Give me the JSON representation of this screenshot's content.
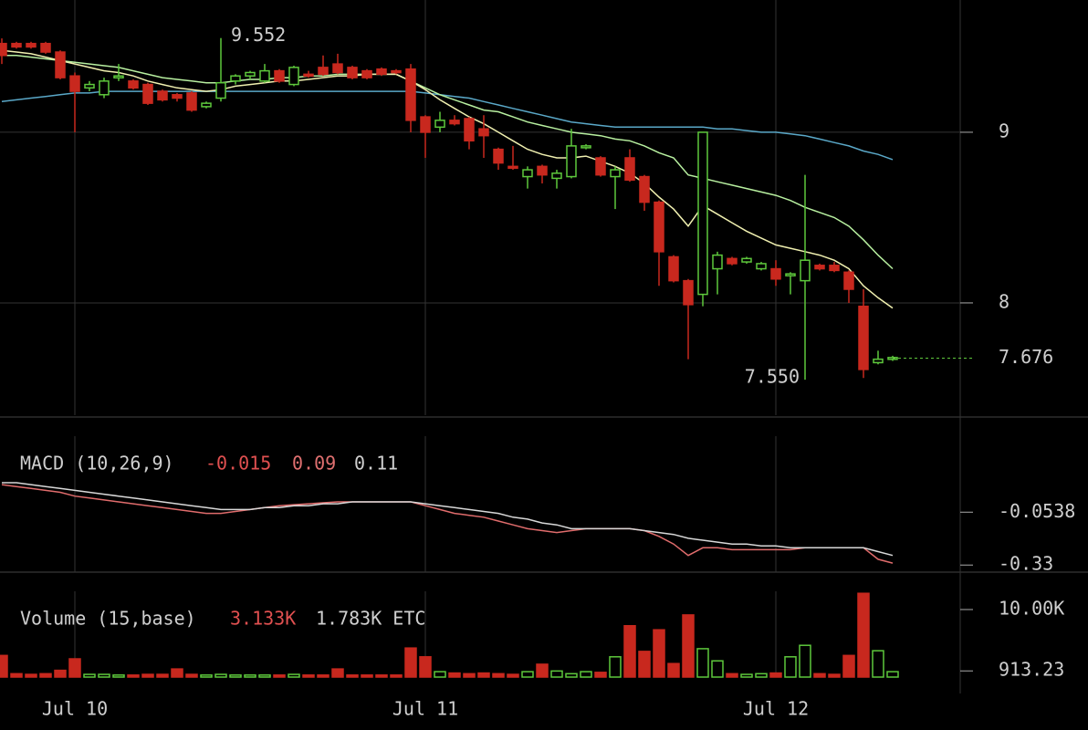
{
  "chart_data": [
    {
      "type": "candlestick",
      "up_color": "#5ec83c",
      "down_color": "#c8281e",
      "open": [
        9.52,
        9.52,
        9.52,
        9.52,
        9.47,
        9.33,
        9.26,
        9.22,
        9.32,
        9.3,
        9.28,
        9.24,
        9.22,
        9.23,
        9.15,
        9.2,
        9.3,
        9.33,
        9.3,
        9.36,
        9.28,
        9.34,
        9.38,
        9.4,
        9.38,
        9.36,
        9.37,
        9.36,
        9.37,
        9.09,
        9.03,
        9.07,
        9.08,
        9.02,
        8.9,
        8.8,
        8.74,
        8.8,
        8.73,
        8.74,
        8.91,
        8.85,
        8.74,
        8.85,
        8.74,
        8.59,
        8.27,
        8.13,
        8.05,
        8.2,
        8.26,
        8.24,
        8.2,
        8.2,
        8.16,
        8.13,
        8.22,
        8.22,
        8.18,
        7.98,
        7.65,
        7.67
      ],
      "high": [
        9.55,
        9.53,
        9.53,
        9.53,
        9.48,
        9.35,
        9.3,
        9.32,
        9.4,
        9.31,
        9.29,
        9.25,
        9.23,
        9.24,
        9.18,
        9.552,
        9.34,
        9.36,
        9.4,
        9.37,
        9.39,
        9.36,
        9.45,
        9.46,
        9.39,
        9.37,
        9.38,
        9.37,
        9.4,
        9.1,
        9.12,
        9.1,
        9.09,
        9.1,
        8.91,
        8.92,
        8.8,
        8.81,
        8.78,
        9.02,
        8.93,
        8.86,
        8.8,
        8.9,
        8.75,
        8.6,
        8.28,
        8.14,
        9.0,
        8.3,
        8.27,
        8.27,
        8.24,
        8.25,
        8.18,
        8.75,
        8.23,
        8.24,
        8.19,
        8.08,
        7.72,
        7.69
      ],
      "low": [
        9.4,
        9.49,
        9.49,
        9.46,
        9.31,
        9.0,
        9.24,
        9.2,
        9.3,
        9.25,
        9.16,
        9.18,
        9.18,
        9.12,
        9.14,
        9.18,
        9.28,
        9.31,
        9.29,
        9.29,
        9.27,
        9.32,
        9.33,
        9.34,
        9.31,
        9.31,
        9.33,
        9.34,
        9.0,
        8.85,
        9.0,
        9.04,
        8.9,
        8.85,
        8.78,
        8.78,
        8.67,
        8.7,
        8.67,
        8.73,
        8.9,
        8.74,
        8.55,
        8.71,
        8.54,
        8.1,
        8.12,
        7.67,
        7.98,
        8.05,
        8.22,
        8.23,
        8.19,
        8.1,
        8.05,
        7.55,
        8.19,
        8.18,
        8.0,
        7.56,
        7.64,
        7.66
      ],
      "close": [
        9.45,
        9.5,
        9.5,
        9.47,
        9.32,
        9.24,
        9.28,
        9.3,
        9.33,
        9.26,
        9.17,
        9.19,
        9.2,
        9.13,
        9.17,
        9.29,
        9.33,
        9.35,
        9.36,
        9.3,
        9.38,
        9.33,
        9.34,
        9.35,
        9.32,
        9.32,
        9.34,
        9.35,
        9.07,
        9.0,
        9.07,
        9.05,
        8.95,
        8.98,
        8.82,
        8.79,
        8.78,
        8.75,
        8.76,
        8.92,
        8.92,
        8.75,
        8.78,
        8.72,
        8.59,
        8.3,
        8.13,
        7.99,
        9.0,
        8.28,
        8.23,
        8.26,
        8.23,
        8.14,
        8.17,
        8.25,
        8.2,
        8.19,
        8.08,
        7.61,
        7.67,
        7.68
      ],
      "series": [
        {
          "color": "#5aa8c8",
          "values": [
            9.18,
            9.19,
            9.2,
            9.21,
            9.22,
            9.23,
            9.23,
            9.24,
            9.24,
            9.24,
            9.24,
            9.24,
            9.24,
            9.24,
            9.24,
            9.24,
            9.24,
            9.24,
            9.24,
            9.24,
            9.24,
            9.24,
            9.24,
            9.24,
            9.24,
            9.24,
            9.24,
            9.24,
            9.24,
            9.23,
            9.22,
            9.21,
            9.2,
            9.18,
            9.16,
            9.14,
            9.12,
            9.1,
            9.08,
            9.06,
            9.05,
            9.04,
            9.03,
            9.03,
            9.03,
            9.03,
            9.03,
            9.03,
            9.03,
            9.02,
            9.02,
            9.01,
            9.0,
            9.0,
            8.99,
            8.98,
            8.96,
            8.94,
            8.92,
            8.89,
            8.87,
            8.84
          ]
        },
        {
          "color": "#b8f0a0",
          "values": [
            9.45,
            9.45,
            9.44,
            9.43,
            9.42,
            9.41,
            9.4,
            9.39,
            9.38,
            9.36,
            9.34,
            9.32,
            9.31,
            9.3,
            9.29,
            9.29,
            9.3,
            9.31,
            9.31,
            9.32,
            9.32,
            9.33,
            9.33,
            9.34,
            9.34,
            9.34,
            9.34,
            9.34,
            9.3,
            9.26,
            9.22,
            9.19,
            9.16,
            9.13,
            9.12,
            9.09,
            9.06,
            9.04,
            9.02,
            9.0,
            8.99,
            8.98,
            8.96,
            8.95,
            8.92,
            8.88,
            8.85,
            8.75,
            8.73,
            8.71,
            8.69,
            8.67,
            8.65,
            8.63,
            8.6,
            8.56,
            8.53,
            8.5,
            8.45,
            8.37,
            8.28,
            8.2
          ]
        },
        {
          "color": "#f0f0b0",
          "values": [
            9.48,
            9.47,
            9.46,
            9.44,
            9.42,
            9.4,
            9.38,
            9.36,
            9.35,
            9.33,
            9.3,
            9.28,
            9.26,
            9.25,
            9.24,
            9.25,
            9.27,
            9.28,
            9.29,
            9.3,
            9.3,
            9.31,
            9.32,
            9.33,
            9.33,
            9.34,
            9.34,
            9.34,
            9.3,
            9.25,
            9.19,
            9.14,
            9.09,
            9.05,
            9.0,
            8.95,
            8.9,
            8.87,
            8.85,
            8.85,
            8.86,
            8.83,
            8.8,
            8.76,
            8.7,
            8.62,
            8.55,
            8.45,
            8.57,
            8.52,
            8.47,
            8.42,
            8.38,
            8.34,
            8.32,
            8.3,
            8.28,
            8.25,
            8.2,
            8.1,
            8.03,
            7.97
          ]
        }
      ],
      "ylim": [
        7.342,
        9.775
      ],
      "yticks": [
        8,
        9
      ],
      "xlim": [
        -0.125,
        65.625
      ],
      "xticks": [
        {
          "value": 5,
          "label": "Jul 10"
        },
        {
          "value": 29,
          "label": "Jul 11"
        },
        {
          "value": 53,
          "label": "Jul 12"
        }
      ],
      "last_price": 7.676,
      "high_label": 9.552,
      "low_label": {
        "value": 7.55,
        "label": "7.550"
      }
    },
    {
      "type": "line",
      "title": "MACD (10,26,9)",
      "readouts": [
        "-0.015",
        "0.09",
        "0.11"
      ],
      "series": [
        {
          "color": "#e06c6c",
          "values": [
            0.09,
            0.08,
            0.07,
            0.06,
            0.05,
            0.03,
            0.02,
            0.01,
            0.0,
            -0.01,
            -0.02,
            -0.03,
            -0.04,
            -0.05,
            -0.06,
            -0.06,
            -0.05,
            -0.04,
            -0.03,
            -0.02,
            -0.015,
            -0.01,
            -0.005,
            0,
            0,
            0,
            0,
            0,
            0,
            -0.02,
            -0.04,
            -0.06,
            -0.07,
            -0.08,
            -0.1,
            -0.12,
            -0.14,
            -0.15,
            -0.16,
            -0.15,
            -0.14,
            -0.14,
            -0.14,
            -0.14,
            -0.15,
            -0.18,
            -0.22,
            -0.28,
            -0.24,
            -0.24,
            -0.25,
            -0.25,
            -0.25,
            -0.25,
            -0.25,
            -0.24,
            -0.24,
            -0.24,
            -0.24,
            -0.24,
            -0.3,
            -0.32
          ]
        },
        {
          "color": "#d8d8d8",
          "values": [
            0.1,
            0.1,
            0.09,
            0.08,
            0.07,
            0.06,
            0.05,
            0.04,
            0.03,
            0.02,
            0.01,
            0,
            -0.01,
            -0.02,
            -0.03,
            -0.04,
            -0.04,
            -0.04,
            -0.03,
            -0.03,
            -0.02,
            -0.02,
            -0.01,
            -0.01,
            0,
            0,
            0,
            0,
            0,
            -0.01,
            -0.02,
            -0.03,
            -0.04,
            -0.05,
            -0.06,
            -0.08,
            -0.09,
            -0.11,
            -0.12,
            -0.14,
            -0.14,
            -0.14,
            -0.14,
            -0.14,
            -0.15,
            -0.16,
            -0.17,
            -0.19,
            -0.2,
            -0.21,
            -0.22,
            -0.22,
            -0.23,
            -0.23,
            -0.24,
            -0.24,
            -0.24,
            -0.24,
            -0.24,
            -0.24,
            -0.26,
            -0.28
          ]
        }
      ],
      "ylim": [
        -0.367,
        0.343
      ],
      "yticks": [
        -0.0538,
        -0.33
      ]
    },
    {
      "type": "bar",
      "title": "Volume (15,base)",
      "readouts": [
        "3.133K",
        "1.783K ETC"
      ],
      "values": [
        3200,
        500,
        400,
        500,
        1000,
        2700,
        400,
        400,
        300,
        300,
        400,
        400,
        1200,
        400,
        300,
        400,
        300,
        300,
        300,
        300,
        400,
        300,
        300,
        1200,
        300,
        300,
        300,
        300,
        4300,
        3000,
        800,
        600,
        500,
        600,
        500,
        400,
        800,
        1900,
        900,
        500,
        800,
        700,
        3000,
        7600,
        3800,
        7000,
        2000,
        9200,
        4200,
        2400,
        500,
        400,
        500,
        600,
        3000,
        4700,
        500,
        400,
        3200,
        12400,
        3900,
        800
      ],
      "ylim": [
        0,
        12700
      ],
      "yticks": [
        {
          "value": 10000,
          "label": "10.00K"
        },
        913.23
      ]
    }
  ]
}
